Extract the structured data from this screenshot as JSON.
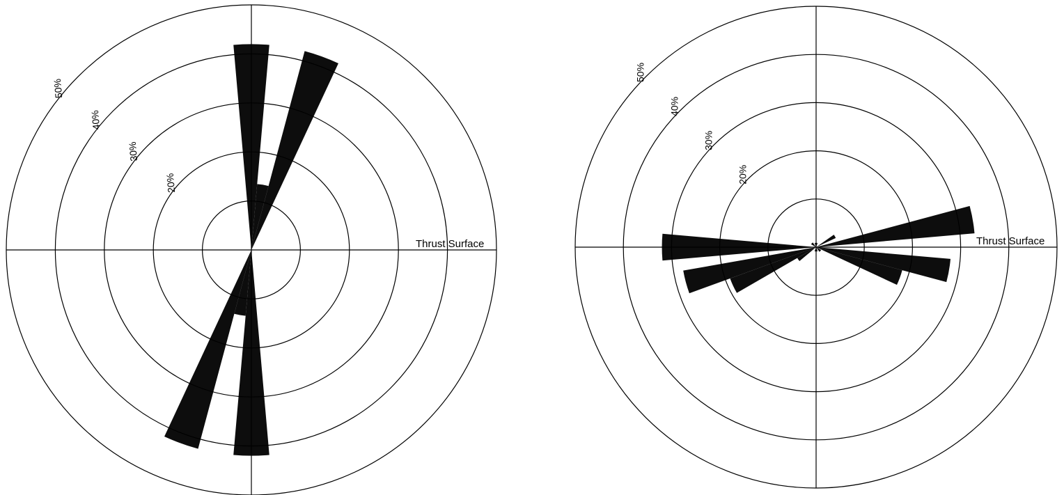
{
  "chart_data": [
    {
      "type": "rose",
      "angle_unit": "degrees clockwise from north",
      "radial_unit": "%",
      "rmax": 50,
      "rings": [
        10,
        20,
        30,
        40,
        50
      ],
      "ring_labels": [
        "20%",
        "30%",
        "40%",
        "50%"
      ],
      "ring_label_values": [
        20,
        30,
        40,
        50
      ],
      "axis_label": "Thrust Surface",
      "grid": true,
      "petal_color": "#0d0d0d",
      "petals": [
        {
          "start": 355,
          "end": 5,
          "value": 42
        },
        {
          "start": 5,
          "end": 15,
          "value": 13.5
        },
        {
          "start": 15,
          "end": 25,
          "value": 42
        },
        {
          "start": 175,
          "end": 185,
          "value": 42
        },
        {
          "start": 185,
          "end": 195,
          "value": 13.5
        },
        {
          "start": 195,
          "end": 205,
          "value": 42
        }
      ]
    },
    {
      "type": "rose",
      "angle_unit": "degrees clockwise from north",
      "radial_unit": "%",
      "rmax": 50,
      "rings": [
        10,
        20,
        30,
        40,
        50
      ],
      "ring_labels": [
        "20%",
        "30%",
        "40%",
        "50%"
      ],
      "ring_label_values": [
        20,
        30,
        40,
        50
      ],
      "axis_label": "Thrust Surface",
      "grid": true,
      "petal_color": "#0d0d0d",
      "petals": [
        {
          "start": 75,
          "end": 85,
          "value": 33
        },
        {
          "start": 95,
          "end": 105,
          "value": 28
        },
        {
          "start": 105,
          "end": 115,
          "value": 18.5
        },
        {
          "start": 55,
          "end": 65,
          "value": 4.5
        },
        {
          "start": 240,
          "end": 250,
          "value": 19
        },
        {
          "start": 250,
          "end": 260,
          "value": 28
        },
        {
          "start": 265,
          "end": 275,
          "value": 32
        },
        {
          "start": 230,
          "end": 240,
          "value": 4.5
        },
        {
          "start": 120,
          "end": 145,
          "value": 1.2
        },
        {
          "start": 300,
          "end": 325,
          "value": 1.2
        },
        {
          "start": 340,
          "end": 20,
          "value": 0.9
        },
        {
          "start": 160,
          "end": 200,
          "value": 0.9
        }
      ]
    }
  ]
}
